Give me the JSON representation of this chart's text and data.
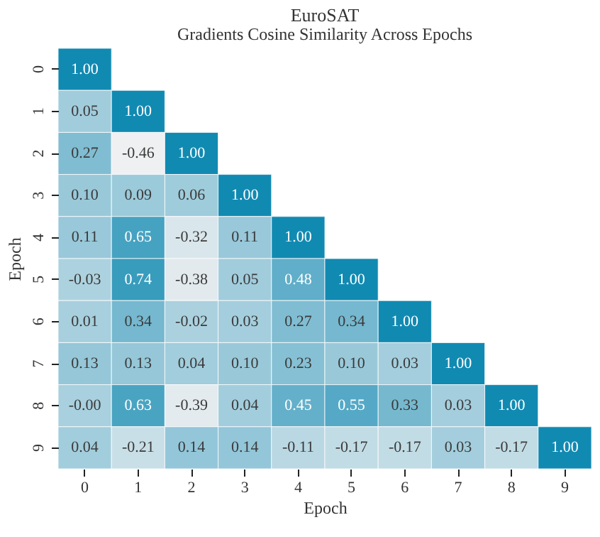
{
  "chart_data": {
    "type": "heatmap",
    "title": "EuroSAT",
    "subtitle": "Gradients Cosine Similarity Across Epochs",
    "xlabel": "Epoch",
    "ylabel": "Epoch",
    "categories": [
      "0",
      "1",
      "2",
      "3",
      "4",
      "5",
      "6",
      "7",
      "8",
      "9"
    ],
    "y_categories": [
      "0",
      "1",
      "2",
      "3",
      "4",
      "5",
      "6",
      "7",
      "8",
      "9"
    ],
    "cells": [
      [
        1.0,
        null,
        null,
        null,
        null,
        null,
        null,
        null,
        null,
        null
      ],
      [
        0.05,
        1.0,
        null,
        null,
        null,
        null,
        null,
        null,
        null,
        null
      ],
      [
        0.27,
        -0.46,
        1.0,
        null,
        null,
        null,
        null,
        null,
        null,
        null
      ],
      [
        0.1,
        0.09,
        0.06,
        1.0,
        null,
        null,
        null,
        null,
        null,
        null
      ],
      [
        0.11,
        0.65,
        -0.32,
        0.11,
        1.0,
        null,
        null,
        null,
        null,
        null
      ],
      [
        -0.03,
        0.74,
        -0.38,
        0.05,
        0.48,
        1.0,
        null,
        null,
        null,
        null
      ],
      [
        0.01,
        0.34,
        -0.02,
        0.03,
        0.27,
        0.34,
        1.0,
        null,
        null,
        null
      ],
      [
        0.13,
        0.13,
        0.04,
        0.1,
        0.23,
        0.1,
        0.03,
        1.0,
        null,
        null
      ],
      [
        -0.0,
        0.63,
        -0.39,
        0.04,
        0.45,
        0.55,
        0.33,
        0.03,
        1.0,
        null
      ],
      [
        0.04,
        -0.21,
        0.14,
        0.14,
        -0.11,
        -0.17,
        -0.17,
        0.03,
        -0.17,
        1.0
      ]
    ],
    "cell_labels": [
      [
        "1.00",
        null,
        null,
        null,
        null,
        null,
        null,
        null,
        null,
        null
      ],
      [
        "0.05",
        "1.00",
        null,
        null,
        null,
        null,
        null,
        null,
        null,
        null
      ],
      [
        "0.27",
        "-0.46",
        "1.00",
        null,
        null,
        null,
        null,
        null,
        null,
        null
      ],
      [
        "0.10",
        "0.09",
        "0.06",
        "1.00",
        null,
        null,
        null,
        null,
        null,
        null
      ],
      [
        "0.11",
        "0.65",
        "-0.32",
        "0.11",
        "1.00",
        null,
        null,
        null,
        null,
        null
      ],
      [
        "-0.03",
        "0.74",
        "-0.38",
        "0.05",
        "0.48",
        "1.00",
        null,
        null,
        null,
        null
      ],
      [
        "0.01",
        "0.34",
        "-0.02",
        "0.03",
        "0.27",
        "0.34",
        "1.00",
        null,
        null,
        null
      ],
      [
        "0.13",
        "0.13",
        "0.04",
        "0.10",
        "0.23",
        "0.10",
        "0.03",
        "1.00",
        null,
        null
      ],
      [
        "-0.00",
        "0.63",
        "-0.39",
        "0.04",
        "0.45",
        "0.55",
        "0.33",
        "0.03",
        "1.00",
        null
      ],
      [
        "0.04",
        "-0.21",
        "0.14",
        "0.14",
        "-0.11",
        "-0.17",
        "-0.17",
        "0.03",
        "-0.17",
        "1.00"
      ]
    ]
  }
}
